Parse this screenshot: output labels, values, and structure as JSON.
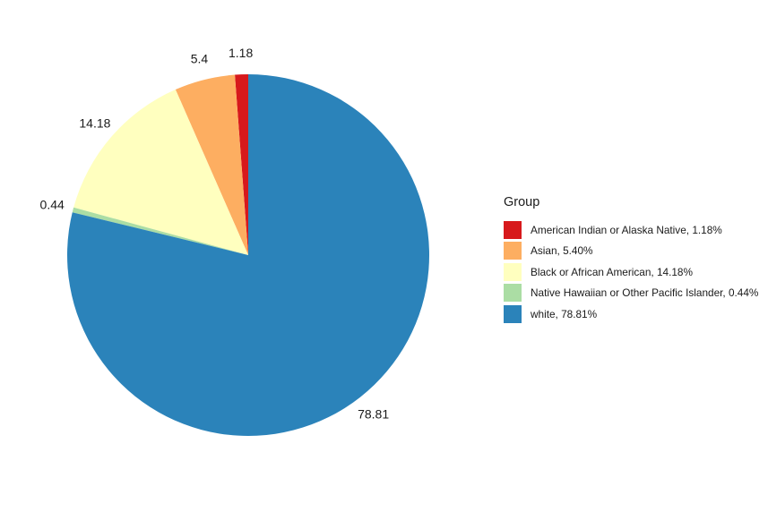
{
  "chart_data": {
    "type": "pie",
    "legend_title": "Group",
    "legend_position": "right",
    "slices": [
      {
        "label": "American Indian or Alaska Native",
        "value": 1.18,
        "legend_text": "American Indian or Alaska Native, 1.18%",
        "data_label": "1.18",
        "color": "#d7191c"
      },
      {
        "label": "Asian",
        "value": 5.4,
        "legend_text": "Asian, 5.40%",
        "data_label": "5.4",
        "color": "#fdae61"
      },
      {
        "label": "Black or African American",
        "value": 14.18,
        "legend_text": "Black or African American, 14.18%",
        "data_label": "14.18",
        "color": "#ffffbf"
      },
      {
        "label": "Native Hawaiian or Other Pacific Islander",
        "value": 0.44,
        "legend_text": "Native Hawaiian or Other Pacific Islander, 0.44%",
        "data_label": "0.44",
        "color": "#abdda4"
      },
      {
        "label": "white",
        "value": 78.81,
        "legend_text": "white, 78.81%",
        "data_label": "78.81",
        "color": "#2b83ba"
      }
    ],
    "direction": "counterclockwise",
    "start_angle": "12 o'clock"
  }
}
